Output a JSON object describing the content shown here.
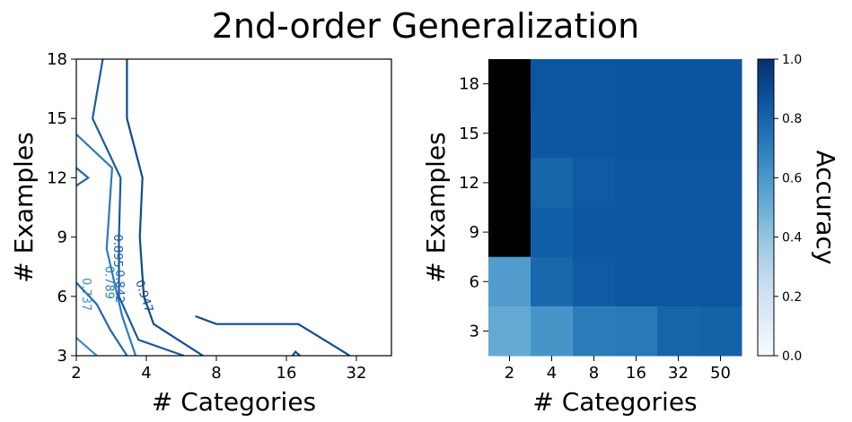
{
  "title": "2nd-order Generalization",
  "chart_data": [
    {
      "type": "contour",
      "xlabel": "# Categories",
      "ylabel": "# Examples",
      "x_ticks": [
        "2",
        "4",
        "8",
        "16",
        "32"
      ],
      "y_ticks": [
        "3",
        "6",
        "9",
        "12",
        "15",
        "18"
      ],
      "contour_levels": [
        {
          "level": 0.737,
          "label": "0.737",
          "color": "#3a8cc8",
          "points": [
            [
              2.0,
              3.9
            ],
            [
              2.45,
              3.0
            ]
          ]
        },
        {
          "level": 0.789,
          "label": "0.789",
          "color": "#2b7bbf",
          "points": [
            [
              2.0,
              14.2
            ],
            [
              2.85,
              12.5
            ],
            [
              2.7,
              8.4
            ],
            [
              3.15,
              5.0
            ],
            [
              3.6,
              3.0
            ]
          ]
        },
        {
          "level": 0.842,
          "label": "0.842",
          "color": "#1f68b0",
          "points": [
            [
              2.0,
              12.5
            ],
            [
              2.25,
              12.0
            ],
            [
              2.0,
              11.6
            ]
          ]
        },
        {
          "level": 0.842,
          "label": "0.842",
          "color": "#1f68b0",
          "points": [
            [
              2.0,
              6.7
            ],
            [
              2.45,
              5.6
            ],
            [
              2.8,
              4.3
            ],
            [
              3.3,
              3.0
            ]
          ]
        },
        {
          "level": 0.895,
          "label": "0.895",
          "color": "#1a5aa0",
          "points": [
            [
              2.6,
              18.0
            ],
            [
              2.35,
              15.0
            ],
            [
              3.1,
              12.0
            ],
            [
              3.05,
              9.0
            ],
            [
              3.05,
              6.0
            ],
            [
              3.7,
              3.8
            ],
            [
              5.8,
              3.0
            ]
          ]
        },
        {
          "level": 0.947,
          "label": "0.947",
          "color": "#0f4c8e",
          "points": [
            [
              3.3,
              18.0
            ],
            [
              3.3,
              15.0
            ],
            [
              3.85,
              12.0
            ],
            [
              3.75,
              9.0
            ],
            [
              3.9,
              6.0
            ],
            [
              4.3,
              4.6
            ],
            [
              7.0,
              3.0
            ]
          ]
        },
        {
          "level": 0.947,
          "label": "0.947",
          "color": "#0f4c8e",
          "points": [
            [
              6.5,
              5.0
            ],
            [
              8.0,
              4.6
            ],
            [
              18.0,
              4.6
            ],
            [
              30.0,
              3.0
            ]
          ]
        },
        {
          "level": 0.947,
          "label": "0.947",
          "color": "#0f4c8e",
          "points": [
            [
              17.0,
              3.0
            ],
            [
              17.5,
              3.2
            ],
            [
              18.3,
              3.0
            ]
          ]
        }
      ]
    },
    {
      "type": "heatmap",
      "xlabel": "# Categories",
      "ylabel": "# Examples",
      "x_categories": [
        "2",
        "4",
        "8",
        "16",
        "32",
        "50"
      ],
      "y_categories": [
        "18",
        "15",
        "12",
        "9",
        "6",
        "3"
      ],
      "values": [
        [
          0.0,
          0.855,
          0.855,
          0.86,
          0.86,
          0.86
        ],
        [
          0.0,
          0.85,
          0.855,
          0.86,
          0.86,
          0.86
        ],
        [
          0.0,
          0.8,
          0.84,
          0.855,
          0.855,
          0.855
        ],
        [
          0.0,
          0.825,
          0.85,
          0.855,
          0.855,
          0.855
        ],
        [
          0.58,
          0.79,
          0.84,
          0.85,
          0.85,
          0.855
        ],
        [
          0.52,
          0.61,
          0.71,
          0.72,
          0.8,
          0.81
        ]
      ],
      "vmin": 0.0,
      "vmax": 1.0,
      "colorbar": {
        "label": "Accuracy",
        "ticks": [
          "0.0",
          "0.2",
          "0.4",
          "0.6",
          "0.8",
          "1.0"
        ]
      }
    }
  ]
}
